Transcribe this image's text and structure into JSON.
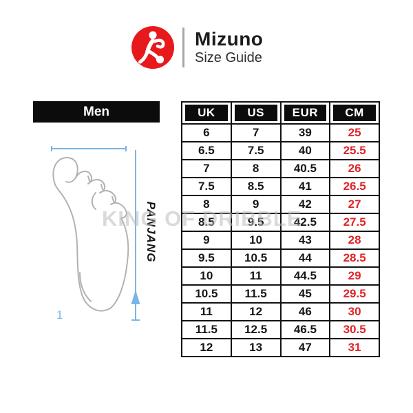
{
  "brand": {
    "name": "Mizuno",
    "subtitle": "Size Guide",
    "logo_icon": "runner-kicking-ball",
    "logo_color": "#e8191d"
  },
  "section": {
    "gender": "Men"
  },
  "diagram": {
    "length_label": "PANJANG",
    "figure_number": "1",
    "measure_color": "#7ab5e5"
  },
  "watermark": {
    "text": "KING OF DRIBBLE"
  },
  "size_table": {
    "cm_color": "#e02327",
    "columns": [
      "UK",
      "US",
      "EUR",
      "CM"
    ],
    "rows": [
      [
        "6",
        "7",
        "39",
        "25"
      ],
      [
        "6.5",
        "7.5",
        "40",
        "25.5"
      ],
      [
        "7",
        "8",
        "40.5",
        "26"
      ],
      [
        "7.5",
        "8.5",
        "41",
        "26.5"
      ],
      [
        "8",
        "9",
        "42",
        "27"
      ],
      [
        "8.5",
        "9.5",
        "42.5",
        "27.5"
      ],
      [
        "9",
        "10",
        "43",
        "28"
      ],
      [
        "9.5",
        "10.5",
        "44",
        "28.5"
      ],
      [
        "10",
        "11",
        "44.5",
        "29"
      ],
      [
        "10.5",
        "11.5",
        "45",
        "29.5"
      ],
      [
        "11",
        "12",
        "46",
        "30"
      ],
      [
        "11.5",
        "12.5",
        "46.5",
        "30.5"
      ],
      [
        "12",
        "13",
        "47",
        "31"
      ]
    ]
  }
}
